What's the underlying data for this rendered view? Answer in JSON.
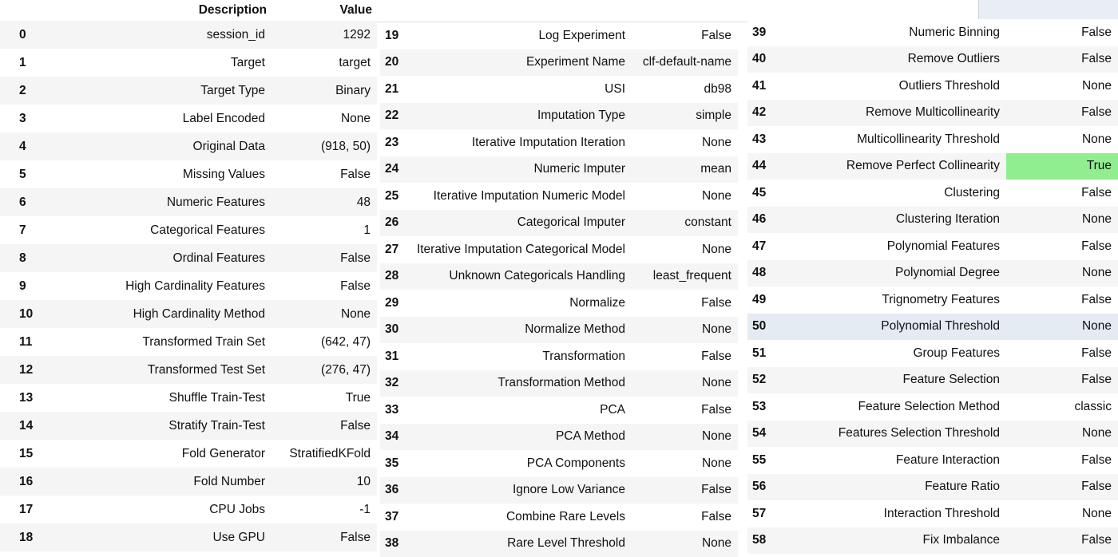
{
  "header": {
    "description": "Description",
    "value": "Value"
  },
  "panel1_rows": [
    [
      "0",
      "session_id",
      "1292"
    ],
    [
      "1",
      "Target",
      "target"
    ],
    [
      "2",
      "Target Type",
      "Binary"
    ],
    [
      "3",
      "Label Encoded",
      "None"
    ],
    [
      "4",
      "Original Data",
      "(918, 50)"
    ],
    [
      "5",
      "Missing Values",
      "False"
    ],
    [
      "6",
      "Numeric Features",
      "48"
    ],
    [
      "7",
      "Categorical Features",
      "1"
    ],
    [
      "8",
      "Ordinal Features",
      "False"
    ],
    [
      "9",
      "High Cardinality Features",
      "False"
    ],
    [
      "10",
      "High Cardinality Method",
      "None"
    ],
    [
      "11",
      "Transformed Train Set",
      "(642, 47)"
    ],
    [
      "12",
      "Transformed Test Set",
      "(276, 47)"
    ],
    [
      "13",
      "Shuffle Train-Test",
      "True"
    ],
    [
      "14",
      "Stratify Train-Test",
      "False"
    ],
    [
      "15",
      "Fold Generator",
      "StratifiedKFold"
    ],
    [
      "16",
      "Fold Number",
      "10"
    ],
    [
      "17",
      "CPU Jobs",
      "-1"
    ],
    [
      "18",
      "Use GPU",
      "False"
    ]
  ],
  "panel2_rows": [
    [
      "19",
      "Log Experiment",
      "False"
    ],
    [
      "20",
      "Experiment Name",
      "clf-default-name"
    ],
    [
      "21",
      "USI",
      "db98"
    ],
    [
      "22",
      "Imputation Type",
      "simple"
    ],
    [
      "23",
      "Iterative Imputation Iteration",
      "None"
    ],
    [
      "24",
      "Numeric Imputer",
      "mean"
    ],
    [
      "25",
      "Iterative Imputation Numeric Model",
      "None"
    ],
    [
      "26",
      "Categorical Imputer",
      "constant"
    ],
    [
      "27",
      "Iterative Imputation Categorical Model",
      "None"
    ],
    [
      "28",
      "Unknown Categoricals Handling",
      "least_frequent"
    ],
    [
      "29",
      "Normalize",
      "False"
    ],
    [
      "30",
      "Normalize Method",
      "None"
    ],
    [
      "31",
      "Transformation",
      "False"
    ],
    [
      "32",
      "Transformation Method",
      "None"
    ],
    [
      "33",
      "PCA",
      "False"
    ],
    [
      "34",
      "PCA Method",
      "None"
    ],
    [
      "35",
      "PCA Components",
      "None"
    ],
    [
      "36",
      "Ignore Low Variance",
      "False"
    ],
    [
      "37",
      "Combine Rare Levels",
      "False"
    ],
    [
      "38",
      "Rare Level Threshold",
      "None"
    ]
  ],
  "panel3_rows": [
    [
      "39",
      "Numeric Binning",
      "False"
    ],
    [
      "40",
      "Remove Outliers",
      "False"
    ],
    [
      "41",
      "Outliers Threshold",
      "None"
    ],
    [
      "42",
      "Remove Multicollinearity",
      "False"
    ],
    [
      "43",
      "Multicollinearity Threshold",
      "None"
    ],
    [
      "44",
      "Remove Perfect Collinearity",
      "True"
    ],
    [
      "45",
      "Clustering",
      "False"
    ],
    [
      "46",
      "Clustering Iteration",
      "None"
    ],
    [
      "47",
      "Polynomial Features",
      "False"
    ],
    [
      "48",
      "Polynomial Degree",
      "None"
    ],
    [
      "49",
      "Trignometry Features",
      "False"
    ],
    [
      "50",
      "Polynomial Threshold",
      "None"
    ],
    [
      "51",
      "Group Features",
      "False"
    ],
    [
      "52",
      "Feature Selection",
      "False"
    ],
    [
      "53",
      "Feature Selection Method",
      "classic"
    ],
    [
      "54",
      "Features Selection Threshold",
      "None"
    ],
    [
      "55",
      "Feature Interaction",
      "False"
    ],
    [
      "56",
      "Feature Ratio",
      "False"
    ],
    [
      "57",
      "Interaction Threshold",
      "None"
    ],
    [
      "58",
      "Fix Imbalance",
      "False"
    ]
  ],
  "highlight_color": "#90ee90",
  "hover_row_color": "#e4ebf2",
  "stripe_color": "#f5f5f5"
}
